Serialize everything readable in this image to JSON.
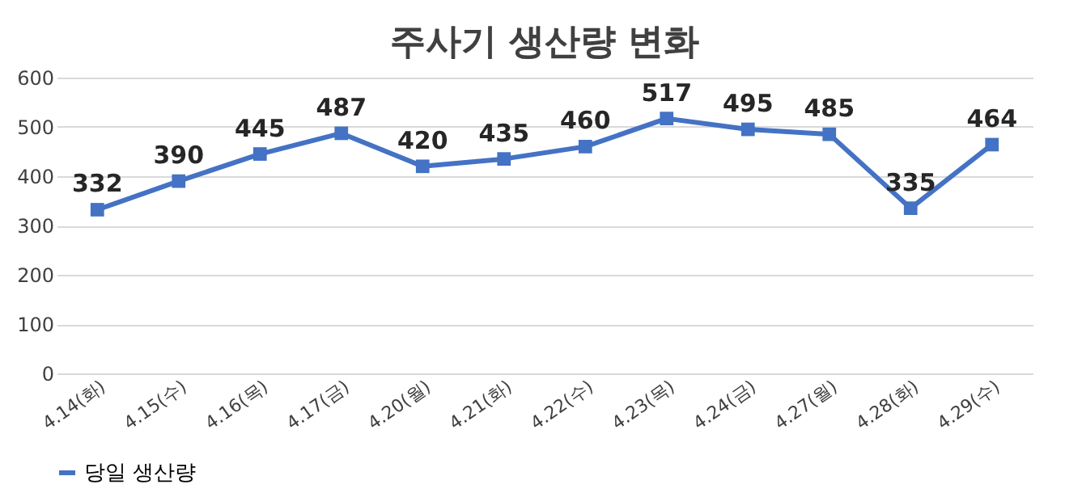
{
  "chart_data": {
    "type": "line",
    "title": "주사기 생산량 변화",
    "categories": [
      "4.14(화)",
      "4.15(수)",
      "4.16(목)",
      "4.17(금)",
      "4.20(월)",
      "4.21(화)",
      "4.22(수)",
      "4.23(목)",
      "4.24(금)",
      "4.27(월)",
      "4.28(화)",
      "4.29(수)"
    ],
    "series": [
      {
        "name": "당일 생산량",
        "color": "#4472c4",
        "values": [
          332,
          390,
          445,
          487,
          420,
          435,
          460,
          517,
          495,
          485,
          335,
          464
        ]
      }
    ],
    "ylim": [
      0,
      600
    ],
    "yticks": [
      0,
      100,
      200,
      300,
      400,
      500,
      600
    ],
    "grid": "y",
    "legend": "bottom",
    "marker": "square",
    "line_style": "solid",
    "data_labels": true
  }
}
